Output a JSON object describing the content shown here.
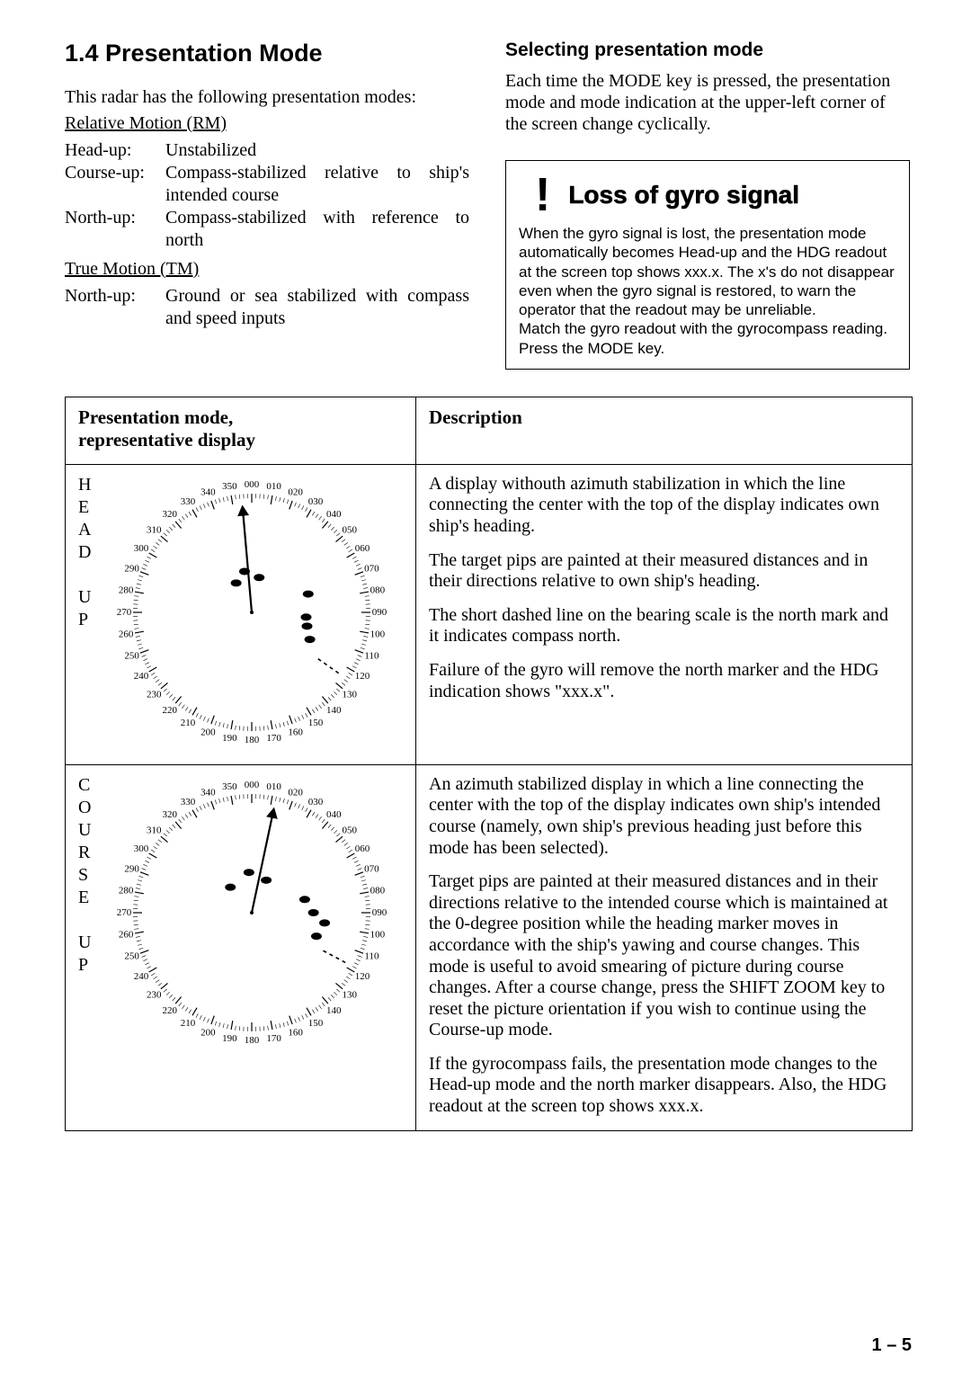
{
  "section_title": "1.4 Presentation Mode",
  "intro": "This radar has the following presentation modes:",
  "rm_heading": "Relative Motion (RM)",
  "rm_rows": [
    {
      "label": "Head-up:",
      "text": "Unstabilized"
    },
    {
      "label": "Course-up:",
      "text": "Compass-stabilized relative to ship's intended course"
    },
    {
      "label": "North-up:",
      "text": "Compass-stabilized with reference to north"
    }
  ],
  "tm_heading": "True Motion (TM)",
  "tm_rows": [
    {
      "label": "North-up:",
      "text": "Ground or sea stabilized with compass and speed inputs"
    }
  ],
  "right_subhead": "Selecting presentation mode",
  "right_para": "Each time the MODE key is pressed, the presentation mode and mode indication at the upper-left corner of the screen change cyclically.",
  "warning": {
    "mark": "!",
    "title": "Loss of gyro signal",
    "body": "When the gyro signal is lost, the presentation mode automatically becomes Head-up and the HDG readout at the screen top shows xxx.x. The x's do not disappear even when the gyro signal is restored, to warn the operator that the readout may be unreliable.\nMatch the gyro readout with the gyrocompass reading. Press the MODE key."
  },
  "table": {
    "headers": [
      "Presentation mode,\nrepresentative display",
      "Description"
    ],
    "rows": [
      {
        "mode_letters": [
          "H",
          "E",
          "A",
          "D",
          " ",
          "U",
          "P"
        ],
        "needle_angle": -5,
        "blips": [
          {
            "r": 0.28,
            "a": -28
          },
          {
            "r": 0.46,
            "a": 95
          },
          {
            "r": 0.5,
            "a": 72
          },
          {
            "r": 0.48,
            "a": 104
          },
          {
            "r": 0.54,
            "a": 115
          },
          {
            "r": 0.35,
            "a": -10
          },
          {
            "r": 0.3,
            "a": 12
          }
        ],
        "dash_angle": 125,
        "desc": [
          "A display withouth azimuth stabilization in which the line connecting the center with the top of the display indicates own ship's heading.",
          "The target pips are painted at their measured distances and in their directions relative to own ship's heading.",
          "The short dashed line on the bearing scale is the north mark and it indicates compass north.",
          "Failure of the gyro will remove the north marker and the HDG indication shows \"xxx.x\"."
        ]
      },
      {
        "mode_letters": [
          "C",
          "O",
          "U",
          "R",
          "S",
          "E",
          " ",
          "U",
          "P"
        ],
        "needle_angle": 12,
        "blips": [
          {
            "r": 0.28,
            "a": -40
          },
          {
            "r": 0.52,
            "a": 90
          },
          {
            "r": 0.62,
            "a": 98
          },
          {
            "r": 0.58,
            "a": 110
          },
          {
            "r": 0.46,
            "a": 76
          },
          {
            "r": 0.34,
            "a": -4
          },
          {
            "r": 0.3,
            "a": 24
          }
        ],
        "dash_angle": 118,
        "desc": [
          "An azimuth stabilized display in which a line connecting the center with the top of the display indicates own ship's intended course (namely, own ship's previous heading just before this mode has been selected).",
          "Target pips are painted at their measured distances and in their directions relative to the intended course which is maintained at the 0-degree position while the heading marker moves in accordance with the ship's yawing and course changes. This mode is useful to avoid smearing of picture during course changes. After a course change, press the SHIFT ZOOM key to reset the picture orientation if you wish to continue using the Course-up mode.",
          "If the gyrocompass fails, the presentation mode changes to the Head-up mode and the north marker disappears. Also, the HDG readout at the screen top shows xxx.x."
        ]
      }
    ]
  },
  "page_num": "1 – 5",
  "compass_style": {
    "size": 300,
    "ring_stroke": "#000000",
    "label_font": 11,
    "tick_major": 10,
    "tick_minor": 5
  }
}
